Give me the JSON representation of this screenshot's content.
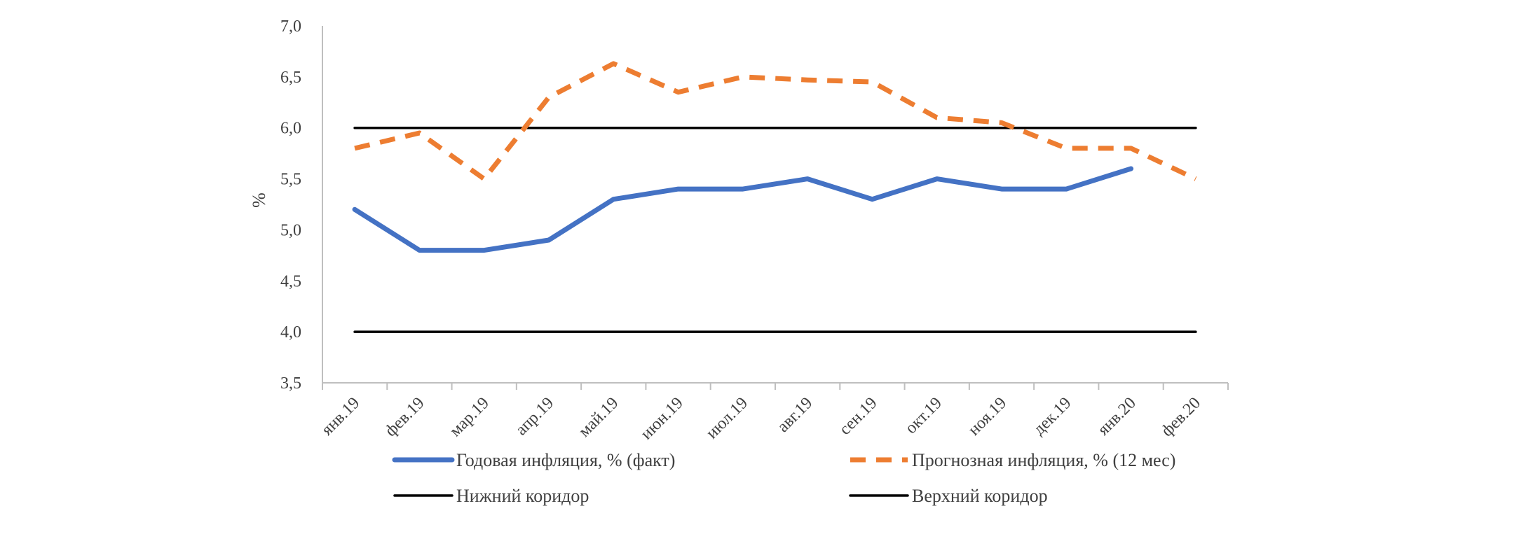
{
  "chart_data": {
    "type": "line",
    "title": "",
    "xlabel": "",
    "ylabel": "%",
    "ylim": [
      3.5,
      7.0
    ],
    "yticks": [
      "3,5",
      "4,0",
      "4,5",
      "5,0",
      "5,5",
      "6,0",
      "6,5",
      "7,0"
    ],
    "grid": false,
    "legend_position": "bottom",
    "categories": [
      "янв.19",
      "фев.19",
      "мар.19",
      "апр.19",
      "май.19",
      "июн.19",
      "июл.19",
      "авг.19",
      "сен.19",
      "окт.19",
      "ноя.19",
      "дек.19",
      "янв.20",
      "фев.20"
    ],
    "series": [
      {
        "name": "Годовая инфляция, % (факт)",
        "style": "solid",
        "color": "#4472C4",
        "values": [
          5.2,
          4.8,
          4.8,
          4.9,
          5.3,
          5.4,
          5.4,
          5.5,
          5.3,
          5.5,
          5.4,
          5.4,
          5.6,
          null
        ]
      },
      {
        "name": "Прогнозная инфляция, % (12 мес)",
        "style": "dashed",
        "color": "#ED7D31",
        "values": [
          5.8,
          5.95,
          5.5,
          6.3,
          6.63,
          6.35,
          6.5,
          6.47,
          6.45,
          6.1,
          6.05,
          5.8,
          5.8,
          5.5
        ]
      },
      {
        "name": "Нижний коридор",
        "style": "solid",
        "color": "#000000",
        "values": [
          4.0,
          4.0,
          4.0,
          4.0,
          4.0,
          4.0,
          4.0,
          4.0,
          4.0,
          4.0,
          4.0,
          4.0,
          4.0,
          4.0
        ]
      },
      {
        "name": "Верхний коридор",
        "style": "solid",
        "color": "#000000",
        "values": [
          6.0,
          6.0,
          6.0,
          6.0,
          6.0,
          6.0,
          6.0,
          6.0,
          6.0,
          6.0,
          6.0,
          6.0,
          6.0,
          6.0
        ]
      }
    ]
  }
}
